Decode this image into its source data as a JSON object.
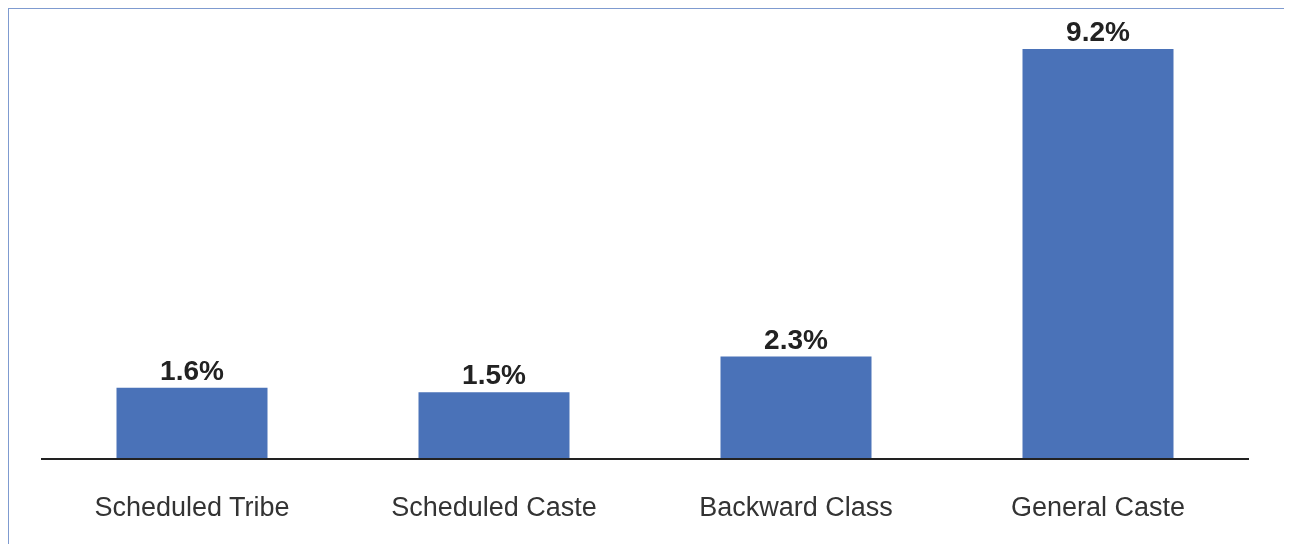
{
  "chart_data": {
    "type": "bar",
    "categories": [
      "Scheduled Tribe",
      "Scheduled Caste",
      "Backward Class",
      "General Caste"
    ],
    "values": [
      1.6,
      1.5,
      2.3,
      9.2
    ],
    "value_labels": [
      "1.6%",
      "1.5%",
      "2.3%",
      "9.2%"
    ],
    "color": "#4a72b8",
    "grid": false
  }
}
